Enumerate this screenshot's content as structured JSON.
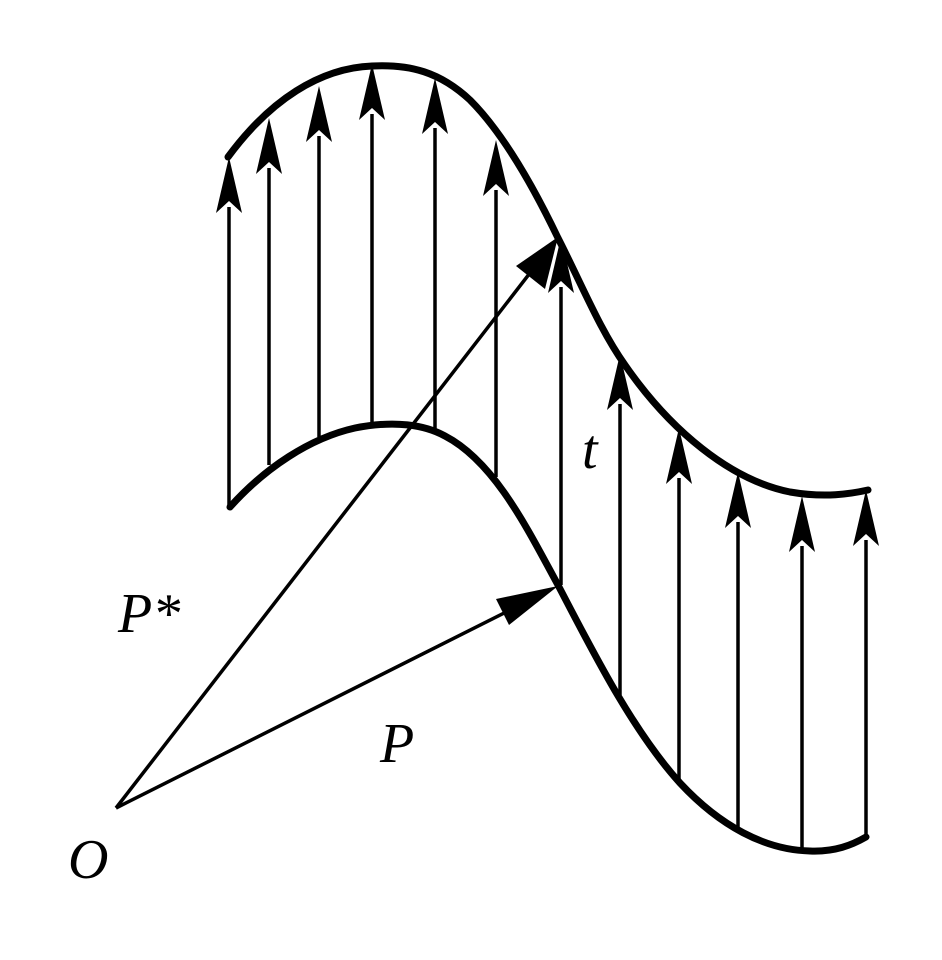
{
  "labels": {
    "origin": "O",
    "p": "P",
    "p_star": "P*",
    "t": "t"
  },
  "style": {
    "stroke_color": "#000000",
    "background": "#ffffff"
  }
}
